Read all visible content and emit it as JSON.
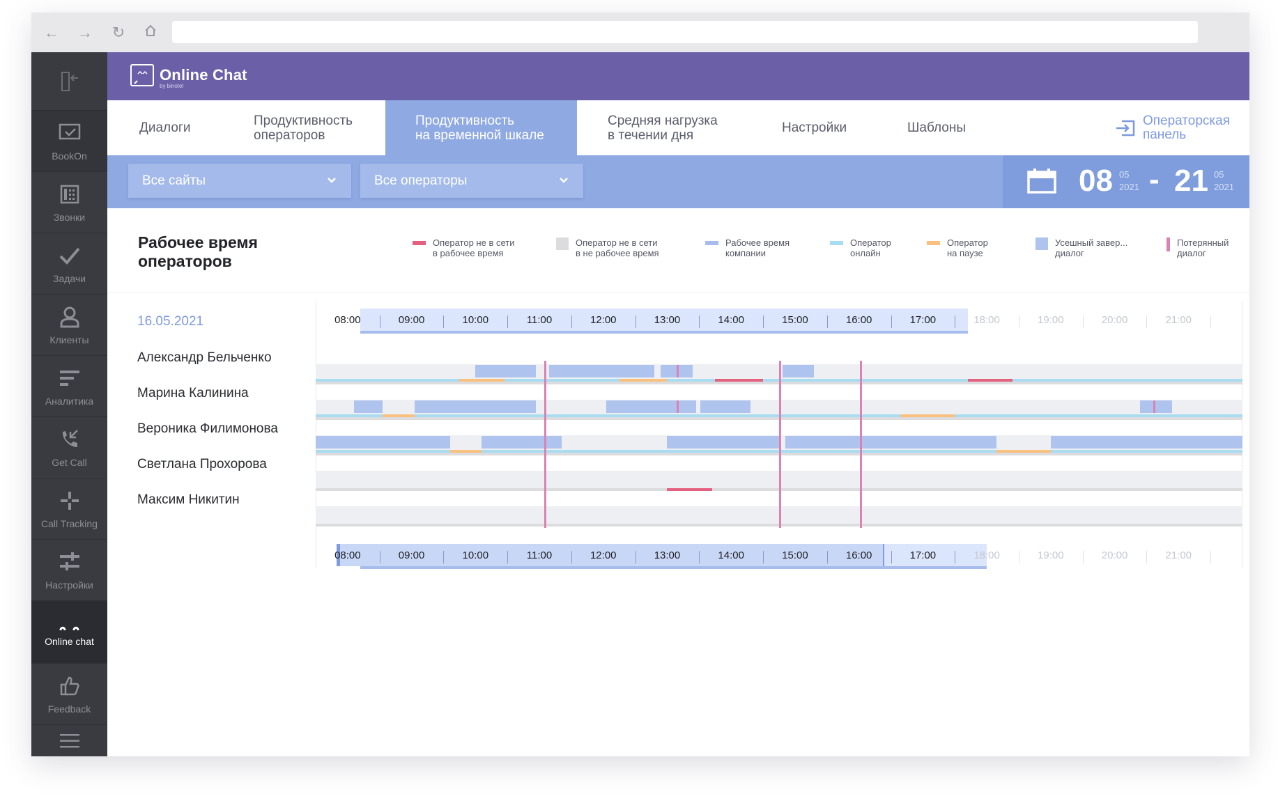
{
  "app": {
    "title": "Online Chat",
    "subtitle": "by binotel"
  },
  "sidebar": {
    "items": [
      {
        "label": "BookOn",
        "icon": "bookon-icon"
      },
      {
        "label": "Звонки",
        "icon": "phone-grid-icon"
      },
      {
        "label": "Задачи",
        "icon": "check-icon"
      },
      {
        "label": "Клиенты",
        "icon": "user-icon"
      },
      {
        "label": "Аналитика",
        "icon": "analytics-icon"
      },
      {
        "label": "Get Call",
        "icon": "get-call-icon"
      },
      {
        "label": "Call Tracking",
        "icon": "call-tracking-icon"
      },
      {
        "label": "Настройки",
        "icon": "settings-sliders-icon"
      },
      {
        "label": "Online chat",
        "icon": "online-chat-icon"
      },
      {
        "label": "Feedback",
        "icon": "feedback-icon"
      }
    ],
    "active": "Online chat"
  },
  "tabs": [
    {
      "line1": "Диалоги",
      "line2": ""
    },
    {
      "line1": "Продуктивность",
      "line2": "операторов"
    },
    {
      "line1": "Продуктивность",
      "line2": "на временной шкале"
    },
    {
      "line1": "Средняя нагрузка",
      "line2": "в течении дня"
    },
    {
      "line1": "Настройки",
      "line2": ""
    },
    {
      "line1": "Шаблоны",
      "line2": ""
    }
  ],
  "active_tab": "Продуктивность на временной шкале",
  "operator_panel": {
    "line1": "Операторская",
    "line2": "панель"
  },
  "filters": {
    "site": "Все сайты",
    "operators": "Все операторы"
  },
  "date_range": {
    "from_day": "08",
    "from_month": "05",
    "from_year": "2021",
    "separator": "-",
    "to_day": "21",
    "to_month": "05",
    "to_year": "2021"
  },
  "section_title": "Рабочее время операторов",
  "legend": [
    {
      "line1": "Оператор не в сети",
      "line2": "в рабочее время",
      "color": "#e4607f"
    },
    {
      "line1": "Оператор не в сети",
      "line2": "в не рабочее время",
      "color": "#dcdcde"
    },
    {
      "line1": "Рабочее время",
      "line2": "компании",
      "color": "#a6bcec"
    },
    {
      "line1": "Оператор",
      "line2": "онлайн",
      "color": "#a8dcf0"
    },
    {
      "line1": "Оператор",
      "line2": "на паузе",
      "color": "#f9c07e"
    },
    {
      "line1": "Усешный завер...",
      "line2": "диалог",
      "color": "#aec3ed"
    },
    {
      "line1": "Потерянный",
      "line2": "диалог",
      "color": "#d982b3"
    }
  ],
  "current_date": "16.05.2021",
  "operators": [
    "Александр Бельченко",
    "Марина Калинина",
    "Вероника Филимонова",
    "Светлана Прохорова",
    "Максим Никитин"
  ],
  "timeline": {
    "hours": [
      "08:00",
      "09:00",
      "10:00",
      "11:00",
      "12:00",
      "13:00",
      "14:00",
      "15:00",
      "16:00",
      "17:00",
      "18:00",
      "19:00",
      "20:00",
      "21:00"
    ],
    "view_start": 7.5,
    "view_end": 22,
    "work_hours": [
      8.2,
      17.7
    ],
    "bottom_selection": [
      7.85,
      16.4
    ],
    "bottom_under": [
      8.2,
      18.0
    ],
    "lost_dialogs": [
      11.08,
      14.75,
      16.02
    ]
  },
  "chart_data": {
    "type": "timeline",
    "unit": "hours",
    "rows": [
      {
        "operator": "Александр Бельченко",
        "dialogs": [
          [
            10.0,
            10.95
          ],
          [
            11.15,
            12.8
          ],
          [
            12.9,
            13.4
          ],
          [
            14.8,
            15.3
          ]
        ],
        "dialog_marks": [
          13.15
        ],
        "online": [
          [
            7.5,
            22
          ]
        ],
        "pause": [
          [
            9.75,
            10.45
          ],
          [
            12.25,
            13.0
          ]
        ],
        "offline_work": [
          [
            13.75,
            14.5
          ],
          [
            17.7,
            18.4
          ]
        ]
      },
      {
        "operator": "Марина Калинина",
        "dialogs": [
          [
            8.1,
            8.55
          ],
          [
            9.05,
            10.95
          ],
          [
            12.05,
            13.45
          ],
          [
            13.52,
            14.3
          ],
          [
            20.4,
            20.9
          ]
        ],
        "dialog_marks": [
          13.15,
          20.6
        ],
        "online": [
          [
            7.5,
            22
          ]
        ],
        "pause": [
          [
            8.55,
            9.05
          ],
          [
            16.65,
            17.5
          ]
        ],
        "offline_work": []
      },
      {
        "operator": "Вероника Филимонова",
        "dialogs": [
          [
            7.5,
            9.6
          ],
          [
            10.1,
            11.35
          ],
          [
            13.0,
            14.75
          ],
          [
            14.85,
            18.15
          ],
          [
            19.0,
            22
          ]
        ],
        "dialog_marks": [],
        "online": [
          [
            7.5,
            22
          ]
        ],
        "pause": [
          [
            9.6,
            10.1
          ],
          [
            18.15,
            19.0
          ]
        ],
        "offline_work": []
      },
      {
        "operator": "Светлана Прохорова",
        "dialogs": [],
        "dialog_marks": [],
        "online": [],
        "pause": [],
        "offline_work": [
          [
            13.0,
            13.7
          ]
        ]
      },
      {
        "operator": "Максим Никитин",
        "dialogs": [],
        "dialog_marks": [],
        "online": [],
        "pause": [],
        "offline_work": []
      }
    ]
  }
}
